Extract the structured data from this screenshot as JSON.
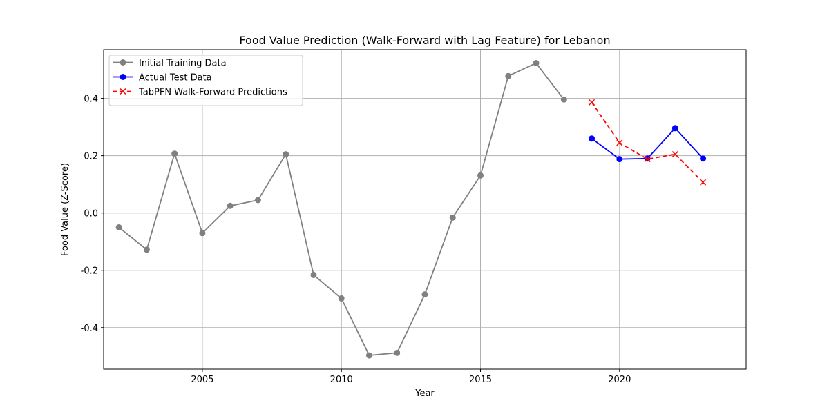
{
  "chart_data": {
    "type": "line",
    "title": "Food Value Prediction (Walk-Forward with Lag Feature) for Lebanon",
    "xlabel": "Year",
    "ylabel": "Food Value (Z-Score)",
    "xlim": [
      2001.45,
      2024.55
    ],
    "ylim": [
      -0.545,
      0.57
    ],
    "xticks": [
      2005,
      2010,
      2015,
      2020
    ],
    "yticks": [
      -0.4,
      -0.2,
      0.0,
      0.2,
      0.4
    ],
    "grid": true,
    "legend_position": "top-left",
    "series": [
      {
        "name": "Initial Training Data",
        "color": "#808080",
        "marker": "circle",
        "linestyle": "solid",
        "x": [
          2002,
          2003,
          2004,
          2005,
          2006,
          2007,
          2008,
          2009,
          2010,
          2011,
          2012,
          2013,
          2014,
          2015,
          2016,
          2017,
          2018
        ],
        "y": [
          -0.05,
          -0.128,
          0.207,
          -0.07,
          0.025,
          0.045,
          0.205,
          -0.216,
          -0.298,
          -0.497,
          -0.488,
          -0.284,
          -0.016,
          0.131,
          0.478,
          0.523,
          0.396
        ]
      },
      {
        "name": "Actual Test Data",
        "color": "#0000ff",
        "marker": "circle",
        "linestyle": "solid",
        "x": [
          2019,
          2020,
          2021,
          2022,
          2023
        ],
        "y": [
          0.26,
          0.188,
          0.19,
          0.296,
          0.19
        ]
      },
      {
        "name": "TabPFN Walk-Forward Predictions",
        "color": "#ff0000",
        "marker": "x",
        "linestyle": "dashed",
        "x": [
          2019,
          2020,
          2021,
          2022,
          2023
        ],
        "y": [
          0.386,
          0.245,
          0.188,
          0.205,
          0.107
        ]
      }
    ]
  }
}
